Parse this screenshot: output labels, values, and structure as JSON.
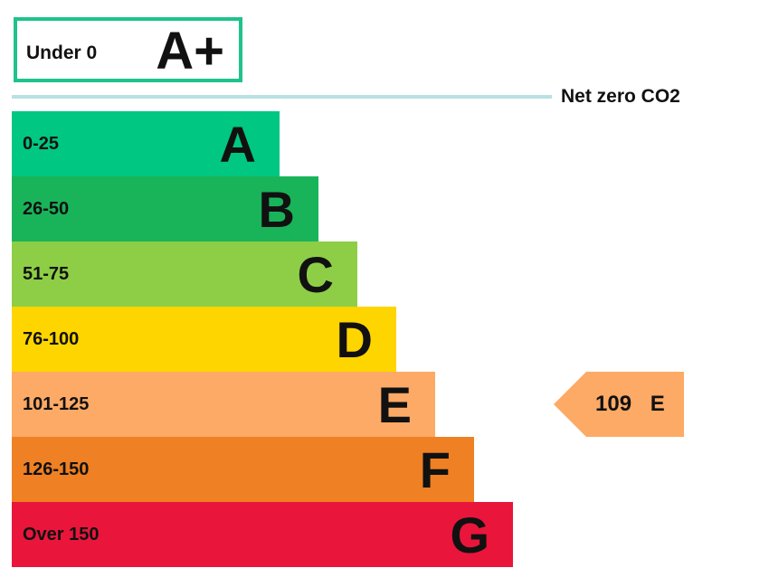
{
  "chart_data": {
    "type": "bar",
    "orientation": "horizontal",
    "top_band": {
      "range": "Under 0",
      "letter": "A+",
      "color": "#1fc28c"
    },
    "net_zero_label": "Net zero CO2",
    "bands": [
      {
        "range": "0-25",
        "letter": "A",
        "color": "#00c781"
      },
      {
        "range": "26-50",
        "letter": "B",
        "color": "#19b459"
      },
      {
        "range": "51-75",
        "letter": "C",
        "color": "#8dce46"
      },
      {
        "range": "76-100",
        "letter": "D",
        "color": "#ffd500"
      },
      {
        "range": "101-125",
        "letter": "E",
        "color": "#fcaa65"
      },
      {
        "range": "126-150",
        "letter": "F",
        "color": "#ef8023"
      },
      {
        "range": "Over 150",
        "letter": "G",
        "color": "#e9153b"
      }
    ],
    "rating": {
      "value": 109,
      "letter": "E",
      "band_index": 4,
      "color": "#fcaa65"
    }
  }
}
